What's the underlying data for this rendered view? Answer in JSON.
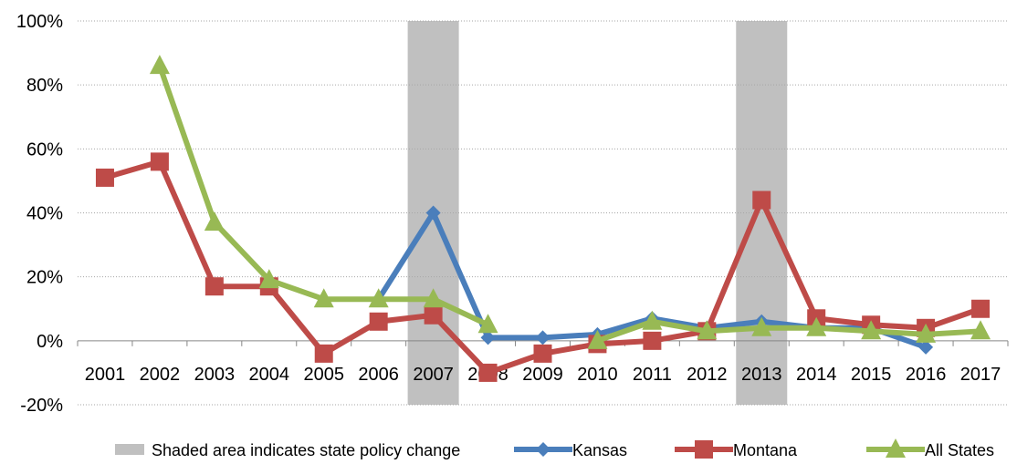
{
  "chart_data": {
    "type": "line",
    "title": "",
    "xlabel": "",
    "ylabel": "",
    "categories": [
      "2001",
      "2002",
      "2003",
      "2004",
      "2005",
      "2006",
      "2007",
      "2008",
      "2009",
      "2010",
      "2011",
      "2012",
      "2013",
      "2014",
      "2015",
      "2016",
      "2017"
    ],
    "ylim": [
      -0.2,
      1.0
    ],
    "yticks": [
      -0.2,
      0,
      0.2,
      0.4,
      0.6,
      0.8,
      1.0
    ],
    "ytick_labels": [
      "-20%",
      "0%",
      "20%",
      "40%",
      "60%",
      "80%",
      "100%"
    ],
    "grid": "horizontal dotted",
    "legend_position": "bottom",
    "shaded_years": [
      "2007",
      "2013"
    ],
    "shaded_label": "Shaded area indicates state policy change",
    "shaded_color": "#c0c0c0",
    "series": [
      {
        "name": "Kansas",
        "color": "#4a7ebb",
        "marker": "diamond",
        "values": [
          null,
          null,
          null,
          null,
          null,
          0.13,
          0.4,
          0.01,
          0.01,
          0.02,
          0.07,
          0.04,
          0.06,
          0.04,
          0.04,
          -0.02,
          null
        ]
      },
      {
        "name": "Montana",
        "color": "#be4b48",
        "marker": "square",
        "values": [
          0.51,
          0.56,
          0.17,
          0.17,
          -0.04,
          0.06,
          0.08,
          -0.1,
          -0.04,
          -0.01,
          0.0,
          0.03,
          0.44,
          0.07,
          0.05,
          0.04,
          0.1
        ]
      },
      {
        "name": "All States",
        "color": "#98b954",
        "marker": "triangle",
        "values": [
          null,
          0.86,
          0.37,
          0.19,
          0.13,
          0.13,
          0.13,
          0.05,
          null,
          0.0,
          0.06,
          0.03,
          0.04,
          0.04,
          0.03,
          0.02,
          0.03
        ]
      }
    ]
  }
}
